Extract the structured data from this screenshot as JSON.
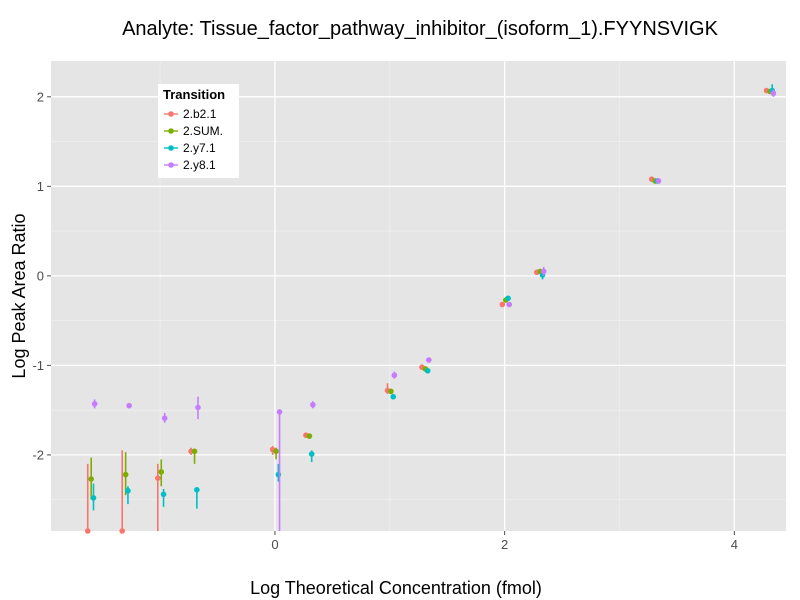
{
  "chart_data": {
    "type": "scatter",
    "title": "Analyte: Tissue_factor_pathway_inhibitor_(isoform_1).FYYNSVIGK",
    "xlabel": "Log Theoretical Concentration (fmol)",
    "ylabel": "Log Peak Area Ratio",
    "xlim": [
      -1.95,
      4.45
    ],
    "ylim": [
      -2.85,
      2.4
    ],
    "x_ticks": [
      0,
      2,
      4
    ],
    "y_ticks": [
      -2,
      -1,
      0,
      1,
      2
    ],
    "x_tick_labels": [
      "0",
      "2",
      "4"
    ],
    "y_tick_labels": [
      "-2",
      "-1",
      "0",
      "1",
      "2"
    ],
    "grid": true,
    "error_bars": true,
    "legend": {
      "title": "Transition",
      "placement": "top-left inside"
    },
    "series": [
      {
        "name": "2.b2.1",
        "color": "#F8766D",
        "points": [
          {
            "x": -1.63,
            "y": -2.85,
            "lo": -2.85,
            "hi": -2.1
          },
          {
            "x": -1.33,
            "y": -2.85,
            "lo": -2.85,
            "hi": -1.95
          },
          {
            "x": -1.02,
            "y": -2.26,
            "lo": -2.85,
            "hi": -2.1
          },
          {
            "x": -0.73,
            "y": -1.96,
            "lo": -2.0,
            "hi": -1.92
          },
          {
            "x": -0.02,
            "y": -1.94,
            "lo": -2.0,
            "hi": -1.9
          },
          {
            "x": 0.27,
            "y": -1.78,
            "lo": -1.8,
            "hi": -1.76
          },
          {
            "x": 0.98,
            "y": -1.28,
            "lo": -1.32,
            "hi": -1.2
          },
          {
            "x": 1.28,
            "y": -1.02,
            "lo": -1.05,
            "hi": -0.99
          },
          {
            "x": 1.98,
            "y": -0.32,
            "lo": -0.34,
            "hi": -0.3
          },
          {
            "x": 2.28,
            "y": 0.04,
            "lo": 0.01,
            "hi": 0.07
          },
          {
            "x": 3.28,
            "y": 1.08,
            "lo": 1.05,
            "hi": 1.11
          },
          {
            "x": 4.28,
            "y": 2.07,
            "lo": 2.05,
            "hi": 2.09
          }
        ]
      },
      {
        "name": "2.SUM.",
        "color": "#7CAE00",
        "points": [
          {
            "x": -1.6,
            "y": -2.27,
            "lo": -2.5,
            "hi": -2.03
          },
          {
            "x": -1.3,
            "y": -2.22,
            "lo": -2.45,
            "hi": -1.97
          },
          {
            "x": -0.99,
            "y": -2.19,
            "lo": -2.35,
            "hi": -2.05
          },
          {
            "x": -0.7,
            "y": -1.96,
            "lo": -2.1,
            "hi": -1.93
          },
          {
            "x": 0.01,
            "y": -1.96,
            "lo": -2.05,
            "hi": -1.92
          },
          {
            "x": 0.3,
            "y": -1.79,
            "lo": -1.81,
            "hi": -1.77
          },
          {
            "x": 1.01,
            "y": -1.29,
            "lo": -1.31,
            "hi": -1.27
          },
          {
            "x": 1.31,
            "y": -1.04,
            "lo": -1.06,
            "hi": -1.02
          },
          {
            "x": 2.01,
            "y": -0.27,
            "lo": -0.29,
            "hi": -0.25
          },
          {
            "x": 2.31,
            "y": 0.05,
            "lo": 0.03,
            "hi": 0.07
          },
          {
            "x": 3.31,
            "y": 1.06,
            "lo": 1.04,
            "hi": 1.08
          },
          {
            "x": 4.31,
            "y": 2.06,
            "lo": 2.04,
            "hi": 2.08
          }
        ]
      },
      {
        "name": "2.y7.1",
        "color": "#00BFC4",
        "points": [
          {
            "x": -1.58,
            "y": -2.48,
            "lo": -2.62,
            "hi": -2.32
          },
          {
            "x": -1.28,
            "y": -2.4,
            "lo": -2.55,
            "hi": -2.35
          },
          {
            "x": -0.97,
            "y": -2.44,
            "lo": -2.58,
            "hi": -2.38
          },
          {
            "x": -0.68,
            "y": -2.39,
            "lo": -2.6,
            "hi": -2.38
          },
          {
            "x": 0.03,
            "y": -2.22,
            "lo": -2.3,
            "hi": -2.1
          },
          {
            "x": 0.32,
            "y": -1.99,
            "lo": -2.08,
            "hi": -1.95
          },
          {
            "x": 1.03,
            "y": -1.35,
            "lo": -1.37,
            "hi": -1.33
          },
          {
            "x": 1.33,
            "y": -1.06,
            "lo": -1.08,
            "hi": -1.04
          },
          {
            "x": 2.03,
            "y": -0.25,
            "lo": -0.27,
            "hi": -0.23
          },
          {
            "x": 2.33,
            "y": 0.01,
            "lo": -0.04,
            "hi": 0.06
          },
          {
            "x": 3.33,
            "y": 1.06,
            "lo": 1.04,
            "hi": 1.08
          },
          {
            "x": 4.33,
            "y": 2.07,
            "lo": 2.03,
            "hi": 2.14
          }
        ]
      },
      {
        "name": "2.y8.1",
        "color": "#C77CFF",
        "points": [
          {
            "x": -1.57,
            "y": -1.43,
            "lo": -1.48,
            "hi": -1.38
          },
          {
            "x": -1.27,
            "y": -1.45,
            "lo": -1.48,
            "hi": -1.42
          },
          {
            "x": -0.96,
            "y": -1.59,
            "lo": -1.64,
            "hi": -1.53
          },
          {
            "x": -0.67,
            "y": -1.47,
            "lo": -1.6,
            "hi": -1.35
          },
          {
            "x": 0.04,
            "y": -1.52,
            "lo": -2.85,
            "hi": -1.5
          },
          {
            "x": 0.33,
            "y": -1.44,
            "lo": -1.48,
            "hi": -1.4
          },
          {
            "x": 1.04,
            "y": -1.11,
            "lo": -1.15,
            "hi": -1.07
          },
          {
            "x": 1.34,
            "y": -0.94,
            "lo": -0.96,
            "hi": -0.92
          },
          {
            "x": 2.04,
            "y": -0.32,
            "lo": -0.34,
            "hi": -0.3
          },
          {
            "x": 2.34,
            "y": 0.05,
            "lo": 0.0,
            "hi": 0.1
          },
          {
            "x": 3.34,
            "y": 1.06,
            "lo": 1.04,
            "hi": 1.08
          },
          {
            "x": 4.34,
            "y": 2.04,
            "lo": 2.0,
            "hi": 2.08
          }
        ]
      }
    ]
  }
}
